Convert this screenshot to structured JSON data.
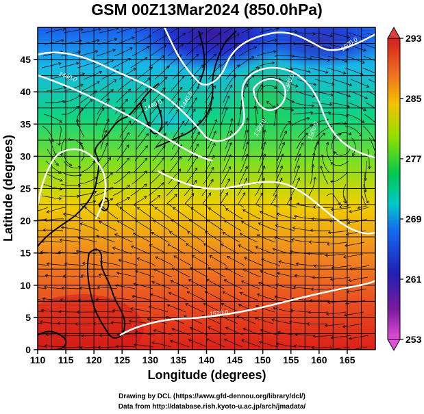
{
  "title": "GSM 00Z13Mar2024 (850.0hPa)",
  "x_axis": {
    "label": "Longitude (degrees)",
    "ticks": [
      "110",
      "115",
      "120",
      "125",
      "130",
      "135",
      "140",
      "145",
      "150",
      "155",
      "160",
      "165"
    ]
  },
  "y_axis": {
    "label": "Latitude  (degrees)",
    "ticks": [
      "0",
      "5",
      "10",
      "15",
      "20",
      "25",
      "30",
      "35",
      "40",
      "45"
    ]
  },
  "colorbar": {
    "ticks": [
      "293",
      "285",
      "277",
      "269",
      "261",
      "253"
    ],
    "colors": [
      "#d41e1e",
      "#f07020",
      "#f3c400",
      "#8ee000",
      "#00c850",
      "#00c8c8",
      "#1468f0",
      "#2020b4",
      "#7a1a9c",
      "#e050d8"
    ]
  },
  "contour_labels": [
    "1440.0",
    "1440.0",
    "1440.0",
    "1500.0",
    "1500.0",
    "1520.0",
    "1380.0",
    "1380.0"
  ],
  "credits": {
    "line1": "Drawing by DCL (https://www.gfd-dennou.org/library/dcl/)",
    "line2": "Data from http://database.rish.kyoto-u.ac.jp/arch/jmadata/"
  },
  "map": {
    "extent_lon": [
      110,
      170
    ],
    "extent_lat": [
      0,
      50
    ],
    "field": "temperature (K) at 850hPa",
    "overlays": [
      "streamlines",
      "geopotential height contours",
      "coastlines",
      "lat/lon grid"
    ]
  }
}
